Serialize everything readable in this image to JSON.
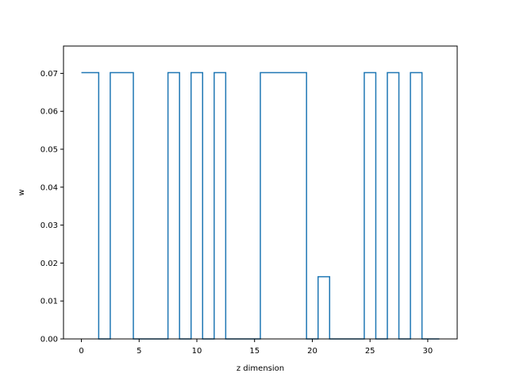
{
  "chart_data": {
    "type": "line",
    "drawstyle": "steps-mid",
    "title": "",
    "xlabel": "z dimension",
    "ylabel": "w",
    "xlim": [
      -1.55,
      32.55
    ],
    "ylim": [
      0.0,
      0.0772
    ],
    "grid": false,
    "x_ticks": [
      0,
      5,
      10,
      15,
      20,
      25,
      30
    ],
    "x_tick_labels": [
      "0",
      "5",
      "10",
      "15",
      "20",
      "25",
      "30"
    ],
    "y_ticks": [
      0.0,
      0.01,
      0.02,
      0.03,
      0.04,
      0.05,
      0.06,
      0.07
    ],
    "y_tick_labels": [
      "0.00",
      "0.01",
      "0.02",
      "0.03",
      "0.04",
      "0.05",
      "0.06",
      "0.07"
    ],
    "series_color": "#1f77b4",
    "x": [
      0,
      1,
      2,
      3,
      4,
      5,
      6,
      7,
      8,
      9,
      10,
      11,
      12,
      13,
      14,
      15,
      16,
      17,
      18,
      19,
      20,
      21,
      22,
      23,
      24,
      25,
      26,
      27,
      28,
      29,
      30,
      31
    ],
    "y": [
      0.0702,
      0.0702,
      0,
      0.0702,
      0.0702,
      0,
      0,
      0,
      0.0702,
      0,
      0.0702,
      0,
      0.0702,
      0,
      0,
      0,
      0.0702,
      0.0702,
      0.0702,
      0.0702,
      0,
      0.0164,
      0,
      0,
      0,
      0.0702,
      0,
      0.0702,
      0,
      0.0702,
      0,
      0
    ]
  }
}
